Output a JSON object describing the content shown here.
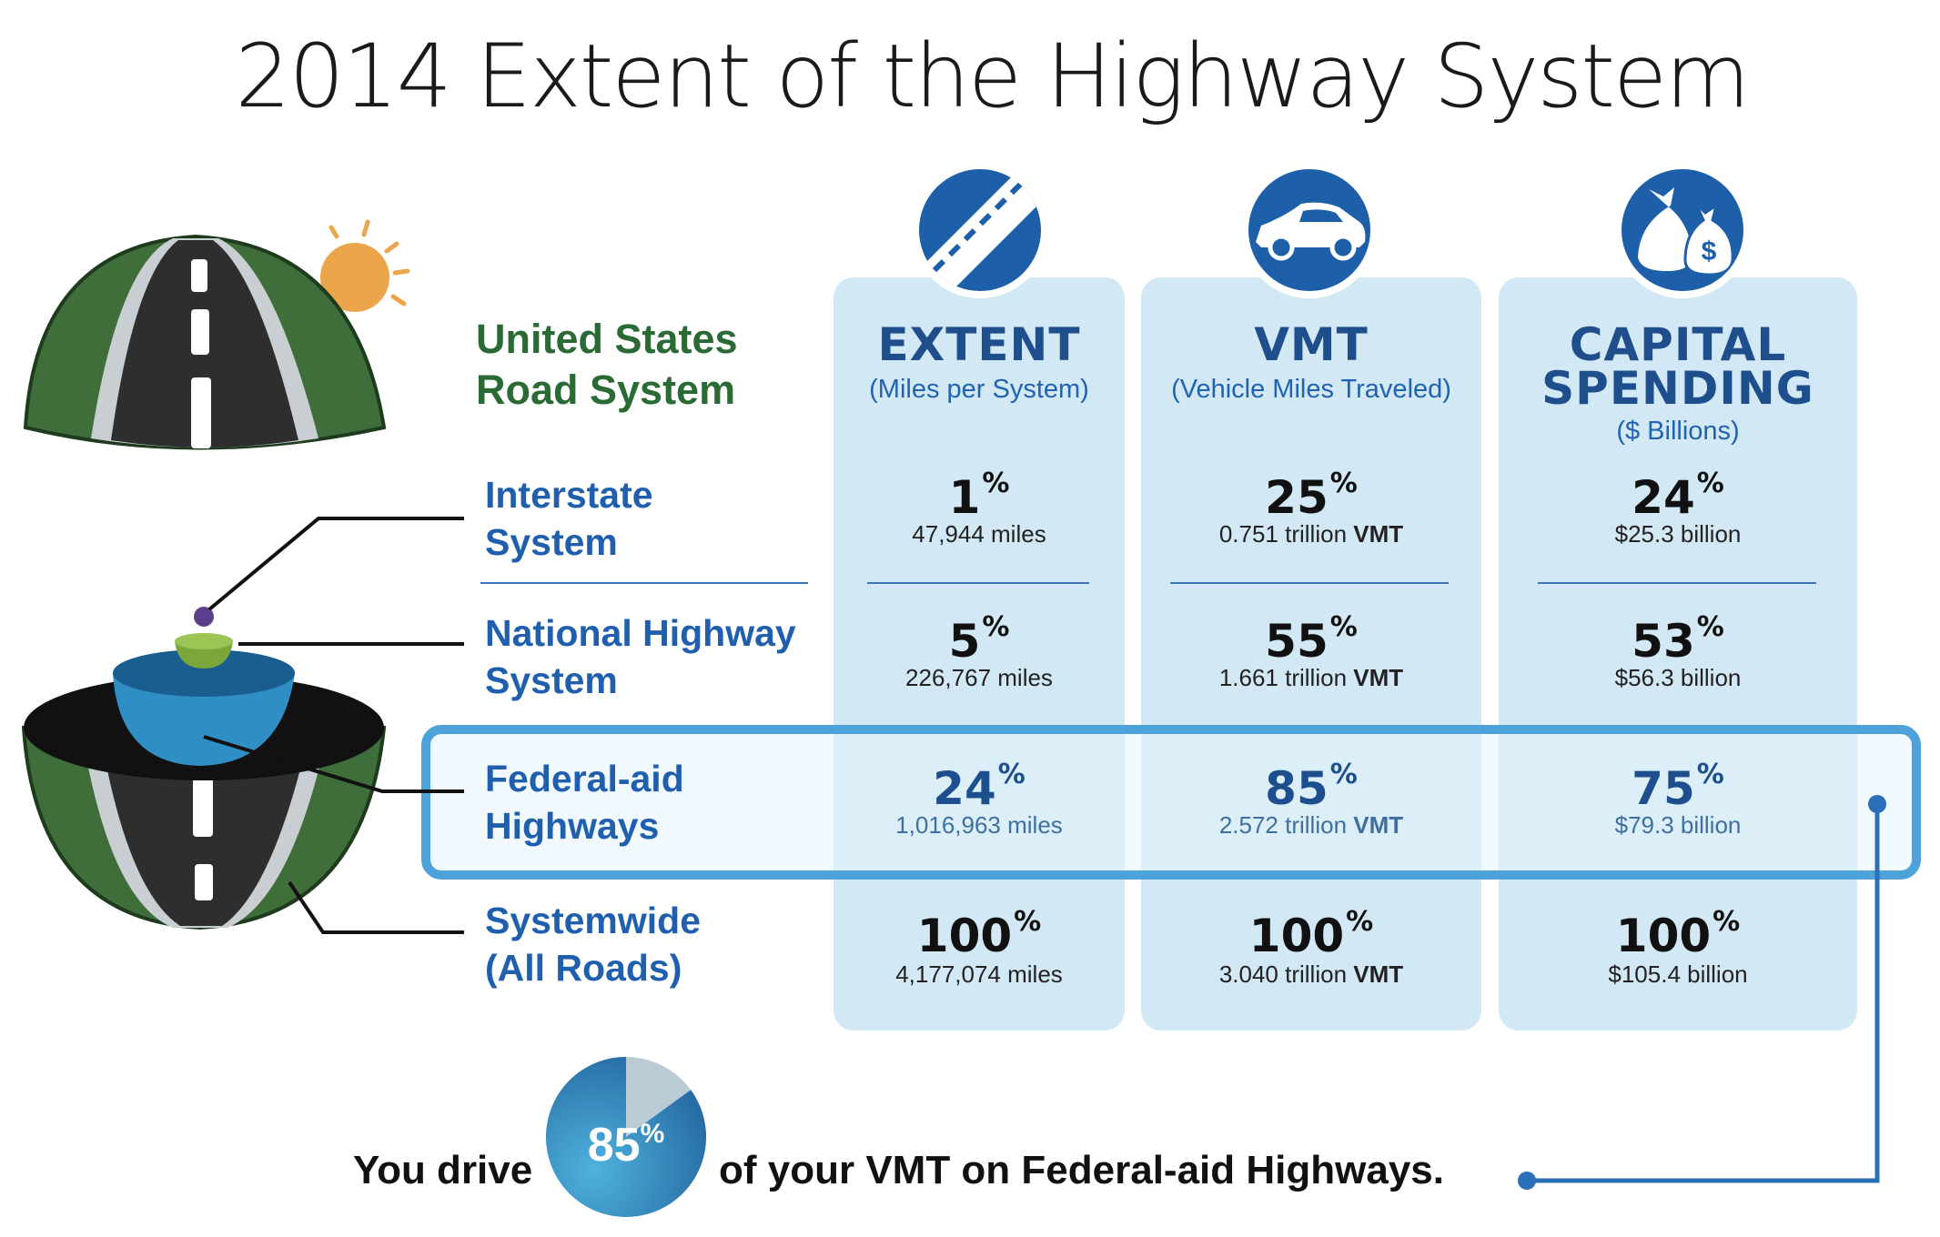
{
  "title": "2014 Extent of the Highway System",
  "road_system_label_line1": "United States",
  "road_system_label_line2": "Road System",
  "columns": [
    {
      "icon": "road-icon",
      "head": [
        "EXTENT"
      ],
      "subhead": "(Miles per System)"
    },
    {
      "icon": "car-icon",
      "head": [
        "VMT"
      ],
      "subhead": "(Vehicle Miles Traveled)"
    },
    {
      "icon": "money-bags-icon",
      "head": [
        "CAPITAL",
        "SPENDING"
      ],
      "subhead": "($ Billions)"
    }
  ],
  "rows": [
    {
      "label": [
        "Interstate",
        "System"
      ],
      "cells": [
        {
          "pct": "1",
          "sub": "47,944 miles",
          "unit": ""
        },
        {
          "pct": "25",
          "sub": "0.751 trillion",
          "unit": "VMT"
        },
        {
          "pct": "24",
          "sub": "$25.3 billion",
          "unit": ""
        }
      ]
    },
    {
      "label": [
        "National Highway",
        "System"
      ],
      "cells": [
        {
          "pct": "5",
          "sub": "226,767 miles",
          "unit": ""
        },
        {
          "pct": "55",
          "sub": "1.661 trillion",
          "unit": "VMT"
        },
        {
          "pct": "53",
          "sub": "$56.3 billion",
          "unit": ""
        }
      ]
    },
    {
      "label": [
        "Federal-aid",
        "Highways"
      ],
      "cells": [
        {
          "pct": "24",
          "sub": "1,016,963 miles",
          "unit": ""
        },
        {
          "pct": "85",
          "sub": "2.572 trillion",
          "unit": "VMT"
        },
        {
          "pct": "75",
          "sub": "$79.3 billion",
          "unit": ""
        }
      ]
    },
    {
      "label": [
        "Systemwide",
        "(All Roads)"
      ],
      "cells": [
        {
          "pct": "100",
          "sub": "4,177,074 miles",
          "unit": ""
        },
        {
          "pct": "100",
          "sub": "3.040 trillion",
          "unit": "VMT"
        },
        {
          "pct": "100",
          "sub": "$105.4 billion",
          "unit": ""
        }
      ]
    }
  ],
  "percent_sign": "%",
  "bottom": {
    "prefix": "You drive",
    "pie_value": "85",
    "pie_fraction": 0.85,
    "suffix": "of your VMT on Federal-aid Highways."
  },
  "colors": {
    "column_bg": "#d3e8f5",
    "icon_bg": "#1d5fa8",
    "label_blue": "#1f5fae",
    "label_green": "#2a6b35",
    "highlight": "#4da3d9"
  }
}
